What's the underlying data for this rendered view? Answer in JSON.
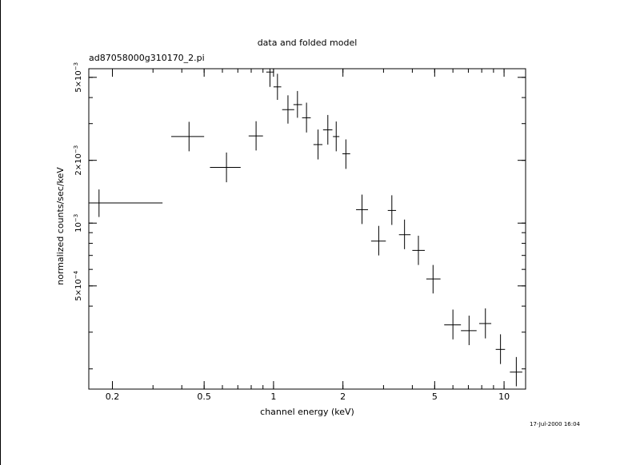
{
  "chart_data": {
    "type": "scatter",
    "title": "data and folded model",
    "subtitle": "ad87058000g310170_2.pi",
    "xlabel": "channel energy (keV)",
    "ylabel": "normalized counts/sec/keV",
    "xscale": "log",
    "yscale": "log",
    "xlim": [
      0.158,
      12.4
    ],
    "ylim": [
      0.00016,
      0.0055
    ],
    "xticks": [
      {
        "value": 0.2,
        "label": "0.2"
      },
      {
        "value": 0.5,
        "label": "0.5"
      },
      {
        "value": 1,
        "label": "1"
      },
      {
        "value": 2,
        "label": "2"
      },
      {
        "value": 5,
        "label": "5"
      },
      {
        "value": 10,
        "label": "10"
      }
    ],
    "yticks": [
      {
        "value": 0.0005,
        "mant": "5×10",
        "exp": "−4"
      },
      {
        "value": 0.001,
        "mant": "10",
        "exp": "−3"
      },
      {
        "value": 0.002,
        "mant": "2×10",
        "exp": "−3"
      },
      {
        "value": 0.005,
        "mant": "5×10",
        "exp": "−3"
      }
    ],
    "points": [
      {
        "x": 0.175,
        "xlo": 0.155,
        "xhi": 0.33,
        "y": 0.00125,
        "ylo": 0.00107,
        "yhi": 0.00145
      },
      {
        "x": 0.43,
        "xlo": 0.36,
        "xhi": 0.5,
        "y": 0.0026,
        "ylo": 0.00221,
        "yhi": 0.00306
      },
      {
        "x": 0.625,
        "xlo": 0.53,
        "xhi": 0.72,
        "y": 0.00185,
        "ylo": 0.00157,
        "yhi": 0.00218
      },
      {
        "x": 0.84,
        "xlo": 0.78,
        "xhi": 0.9,
        "y": 0.00262,
        "ylo": 0.00223,
        "yhi": 0.00308
      },
      {
        "x": 0.965,
        "xlo": 0.93,
        "xhi": 1.0,
        "y": 0.0053,
        "ylo": 0.0045,
        "yhi": 0.0058
      },
      {
        "x": 1.04,
        "xlo": 1.0,
        "xhi": 1.08,
        "y": 0.0045,
        "ylo": 0.0039,
        "yhi": 0.0052
      },
      {
        "x": 1.155,
        "xlo": 1.09,
        "xhi": 1.23,
        "y": 0.0035,
        "ylo": 0.003,
        "yhi": 0.0041
      },
      {
        "x": 1.27,
        "xlo": 1.22,
        "xhi": 1.33,
        "y": 0.0037,
        "ylo": 0.0032,
        "yhi": 0.0043
      },
      {
        "x": 1.39,
        "xlo": 1.33,
        "xhi": 1.45,
        "y": 0.0032,
        "ylo": 0.00272,
        "yhi": 0.00378
      },
      {
        "x": 1.56,
        "xlo": 1.49,
        "xhi": 1.63,
        "y": 0.00238,
        "ylo": 0.00202,
        "yhi": 0.00281
      },
      {
        "x": 1.72,
        "xlo": 1.64,
        "xhi": 1.8,
        "y": 0.0028,
        "ylo": 0.00238,
        "yhi": 0.0033
      },
      {
        "x": 1.87,
        "xlo": 1.81,
        "xhi": 1.93,
        "y": 0.0026,
        "ylo": 0.00221,
        "yhi": 0.00307
      },
      {
        "x": 2.06,
        "xlo": 1.99,
        "xhi": 2.15,
        "y": 0.00215,
        "ylo": 0.00182,
        "yhi": 0.00252
      },
      {
        "x": 2.42,
        "xlo": 2.28,
        "xhi": 2.57,
        "y": 0.00116,
        "ylo": 0.00099,
        "yhi": 0.00137
      },
      {
        "x": 2.86,
        "xlo": 2.65,
        "xhi": 3.07,
        "y": 0.00082,
        "ylo": 0.0007,
        "yhi": 0.00097
      },
      {
        "x": 3.26,
        "xlo": 3.13,
        "xhi": 3.4,
        "y": 0.00115,
        "ylo": 0.00098,
        "yhi": 0.00136
      },
      {
        "x": 3.7,
        "xlo": 3.5,
        "xhi": 3.93,
        "y": 0.00088,
        "ylo": 0.00075,
        "yhi": 0.00104
      },
      {
        "x": 4.25,
        "xlo": 4.0,
        "xhi": 4.53,
        "y": 0.00074,
        "ylo": 0.00063,
        "yhi": 0.00087
      },
      {
        "x": 4.92,
        "xlo": 4.6,
        "xhi": 5.3,
        "y": 0.00054,
        "ylo": 0.00046,
        "yhi": 0.00063
      },
      {
        "x": 6.0,
        "xlo": 5.5,
        "xhi": 6.5,
        "y": 0.000325,
        "ylo": 0.000277,
        "yhi": 0.000385
      },
      {
        "x": 7.05,
        "xlo": 6.5,
        "xhi": 7.6,
        "y": 0.000305,
        "ylo": 0.00026,
        "yhi": 0.00036
      },
      {
        "x": 8.3,
        "xlo": 7.8,
        "xhi": 8.8,
        "y": 0.00033,
        "ylo": 0.00028,
        "yhi": 0.00039
      },
      {
        "x": 9.65,
        "xlo": 9.2,
        "xhi": 10.1,
        "y": 0.000248,
        "ylo": 0.000211,
        "yhi": 0.000293
      },
      {
        "x": 11.3,
        "xlo": 10.6,
        "xhi": 12.0,
        "y": 0.000193,
        "ylo": 0.000165,
        "yhi": 0.000228
      }
    ]
  },
  "timestamp": "17-Jul-2000 16:04"
}
